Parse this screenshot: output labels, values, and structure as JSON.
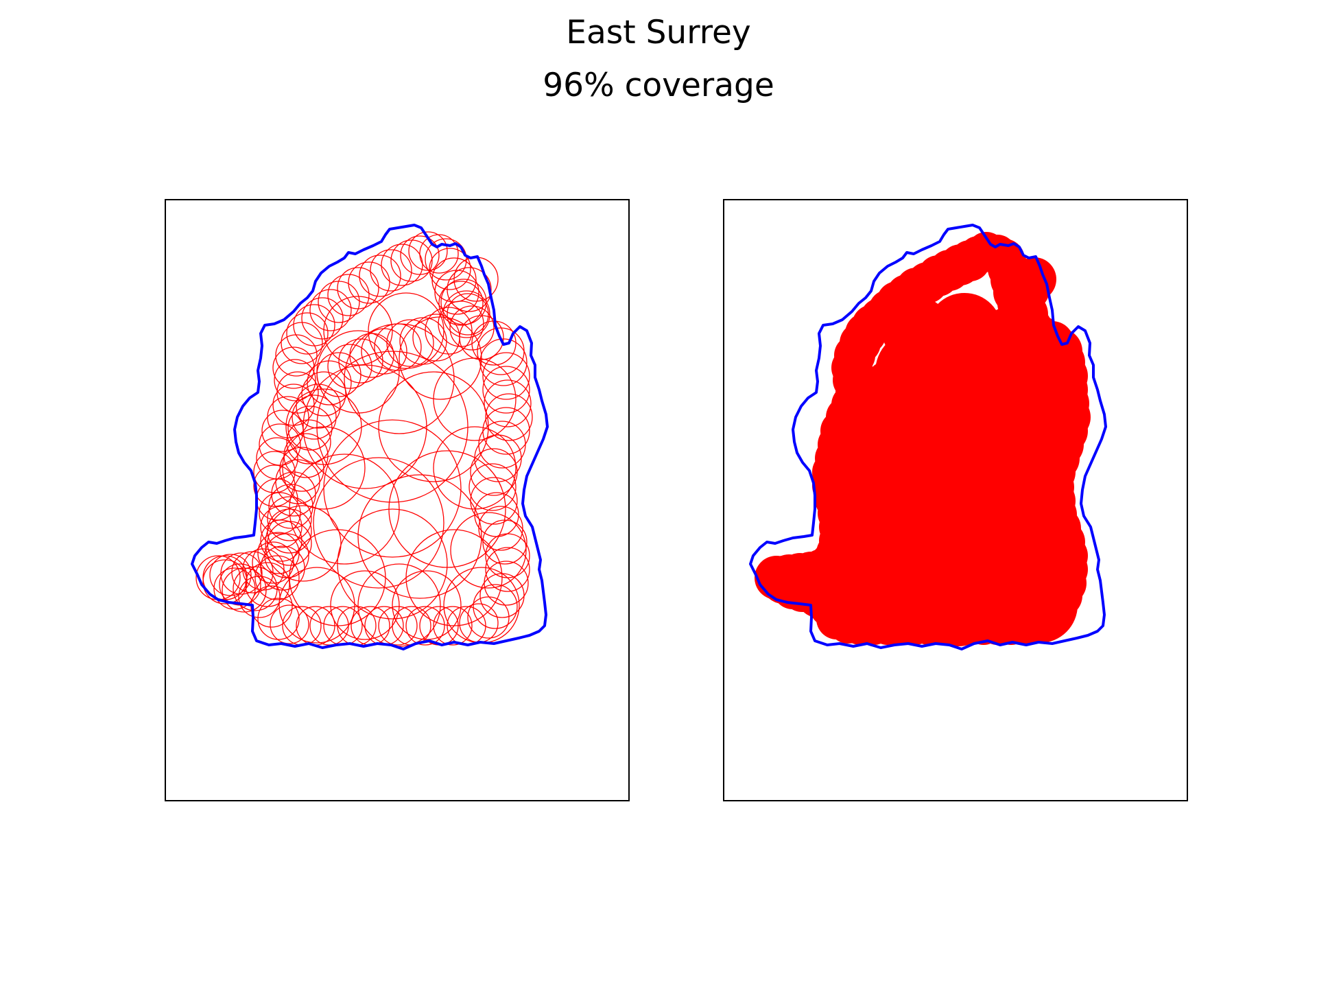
{
  "title": "East Surrey",
  "subtitle": "96% coverage",
  "colors": {
    "boundary": "#0000ff",
    "coverage": "#ff0000",
    "frame": "#000000",
    "background": "#ffffff"
  },
  "panels": [
    {
      "id": "left",
      "style": "circle-outlines"
    },
    {
      "id": "right",
      "style": "filled-union"
    }
  ]
}
